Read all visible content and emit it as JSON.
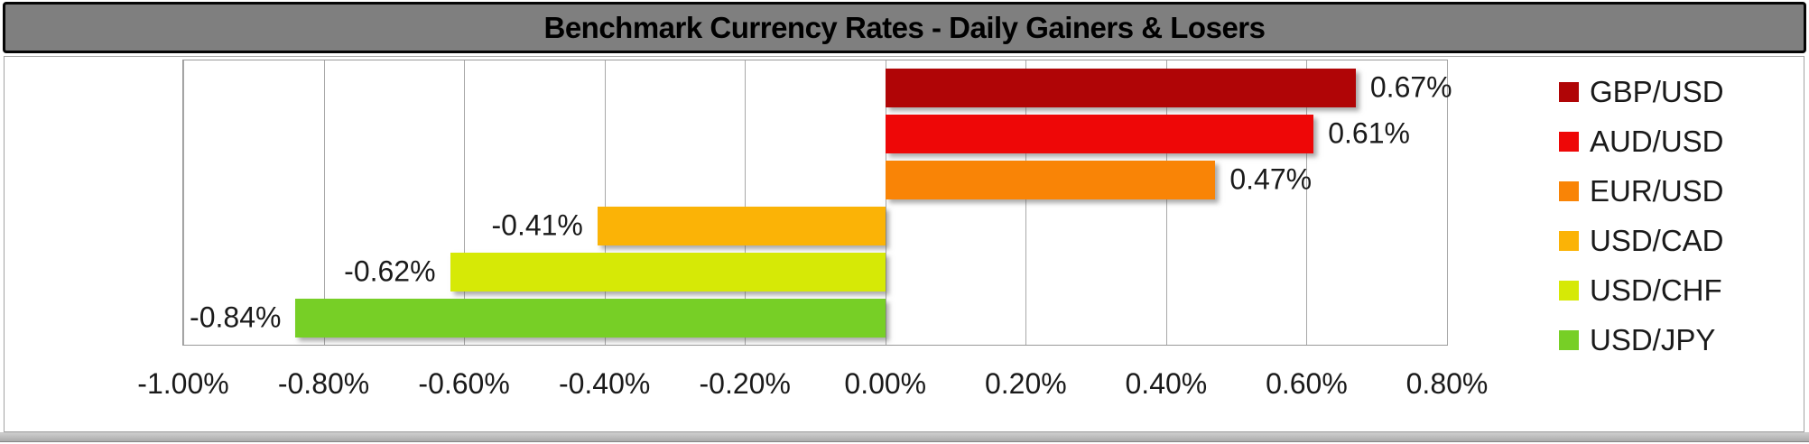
{
  "title": "Benchmark Currency Rates - Daily Gainers & Losers",
  "chart_data": {
    "type": "bar",
    "orientation": "horizontal",
    "title": "Benchmark Currency Rates - Daily Gainers & Losers",
    "series": [
      {
        "name": "GBP/USD",
        "value": 0.67,
        "label": "0.67%",
        "color": "#b00506"
      },
      {
        "name": "AUD/USD",
        "value": 0.61,
        "label": "0.61%",
        "color": "#ee0707"
      },
      {
        "name": "EUR/USD",
        "value": 0.47,
        "label": "0.47%",
        "color": "#f98406"
      },
      {
        "name": "USD/CAD",
        "value": -0.41,
        "label": "-0.41%",
        "color": "#fbb306"
      },
      {
        "name": "USD/CHF",
        "value": -0.62,
        "label": "-0.62%",
        "color": "#d6e906"
      },
      {
        "name": "USD/JPY",
        "value": -0.84,
        "label": "-0.84%",
        "color": "#77cf26"
      }
    ],
    "x_axis": {
      "min": -1.0,
      "max": 0.8,
      "step": 0.2,
      "tick_labels": [
        "-1.00%",
        "-0.80%",
        "-0.60%",
        "-0.40%",
        "-0.20%",
        "0.00%",
        "0.20%",
        "0.40%",
        "0.60%",
        "0.80%"
      ]
    },
    "legend": {
      "position": "right",
      "entries": [
        "GBP/USD",
        "AUD/USD",
        "EUR/USD",
        "USD/CAD",
        "USD/CHF",
        "USD/JPY"
      ]
    },
    "grid": true,
    "ylim_categories": 6
  },
  "style": {
    "title_bg": "#7f7f7f",
    "title_border": "#050505",
    "chart_border": "#a3a3a3",
    "gridline_color": "#a8a8a8",
    "text_color": "#1a1a1a"
  }
}
